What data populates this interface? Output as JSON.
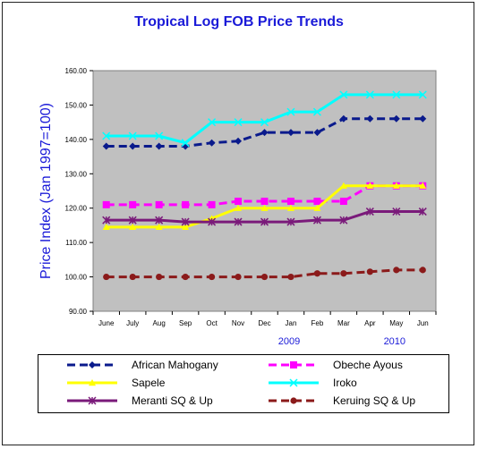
{
  "chart_data": {
    "type": "line",
    "title": "Tropical Log FOB Price Trends",
    "xlabel": "",
    "ylabel": "Price Index (Jan 1997=100)",
    "ylim": [
      90,
      160
    ],
    "yticks": [
      "90.00",
      "100.00",
      "110.00",
      "120.00",
      "130.00",
      "140.00",
      "150.00",
      "160.00"
    ],
    "categories": [
      "June",
      "July",
      "Aug",
      "Sep",
      "Oct",
      "Nov",
      "Dec",
      "Jan",
      "Feb",
      "Mar",
      "Apr",
      "May",
      "Jun"
    ],
    "year_labels": [
      {
        "label": "2009",
        "at": "Jan"
      },
      {
        "label": "2010",
        "at": "May"
      }
    ],
    "grid": false,
    "legend_position": "bottom",
    "series": [
      {
        "name": "African Mahogany",
        "color": "#0a1a8c",
        "dash": "dashed",
        "marker": "diamond",
        "values": [
          138,
          138,
          138,
          138,
          139,
          139.5,
          142,
          142,
          142,
          146,
          146,
          146,
          146
        ]
      },
      {
        "name": "Obeche Ayous",
        "color": "#ff00ff",
        "dash": "dashed",
        "marker": "square",
        "values": [
          121,
          121,
          121,
          121,
          121,
          122,
          122,
          122,
          122,
          122,
          126.5,
          126.5,
          126.5
        ]
      },
      {
        "name": "Sapele",
        "color": "#ffff00",
        "dash": "solid",
        "marker": "triangle",
        "values": [
          114.5,
          114.5,
          114.5,
          114.5,
          117,
          120,
          120,
          120,
          120,
          126.5,
          126.5,
          126.5,
          126.5
        ]
      },
      {
        "name": "Iroko",
        "color": "#00ffff",
        "dash": "solid",
        "marker": "x",
        "values": [
          141,
          141,
          141,
          139,
          145,
          145,
          145,
          148,
          148,
          153,
          153,
          153,
          153
        ]
      },
      {
        "name": "Meranti SQ & Up",
        "color": "#7a1a7a",
        "dash": "solid",
        "marker": "star",
        "values": [
          116.5,
          116.5,
          116.5,
          116,
          116,
          116,
          116,
          116,
          116.5,
          116.5,
          119,
          119,
          119
        ]
      },
      {
        "name": "Keruing SQ & Up",
        "color": "#8b1a1a",
        "dash": "dashed",
        "marker": "circle",
        "values": [
          100,
          100,
          100,
          100,
          100,
          100,
          100,
          100,
          101,
          101,
          101.5,
          102,
          102
        ]
      }
    ]
  }
}
